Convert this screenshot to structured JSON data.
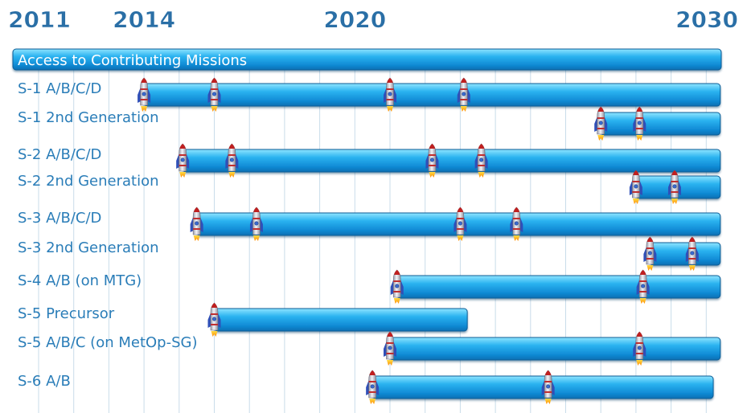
{
  "chart_data": {
    "type": "timeline",
    "x_axis_years": [
      "2011",
      "2014",
      "2020",
      "2030"
    ],
    "xlim": [
      2011,
      2030.5
    ],
    "grid": true,
    "banner": {
      "label": "Access to Contributing Missions",
      "start": 2011,
      "end": 2030.4
    },
    "rows": [
      {
        "label": "S-1 A/B/C/D",
        "start": 2014.0,
        "end": 2030.4,
        "launches": [
          2014.0,
          2016.0,
          2021.0,
          2023.1
        ]
      },
      {
        "label": "S-1 2nd Generation",
        "start": 2027.0,
        "end": 2030.4,
        "launches": [
          2027.0,
          2028.1
        ]
      },
      {
        "label": "S-2 A/B/C/D",
        "start": 2015.1,
        "end": 2030.4,
        "launches": [
          2015.1,
          2016.5,
          2022.2,
          2023.6
        ]
      },
      {
        "label": "S-2 2nd Generation",
        "start": 2028.0,
        "end": 2030.4,
        "launches": [
          2028.0,
          2029.1
        ]
      },
      {
        "label": "S-3 A/B/C/D",
        "start": 2015.5,
        "end": 2030.4,
        "launches": [
          2015.5,
          2017.2,
          2023.0,
          2024.6
        ]
      },
      {
        "label": "S-3 2nd Generation",
        "start": 2028.4,
        "end": 2030.4,
        "launches": [
          2028.4,
          2029.6
        ]
      },
      {
        "label": "S-4 A/B (on MTG)",
        "start": 2021.2,
        "end": 2030.4,
        "launches": [
          2021.2,
          2028.2
        ]
      },
      {
        "label": "S-5 Precursor",
        "start": 2016.0,
        "end": 2023.2,
        "launches": [
          2016.0
        ]
      },
      {
        "label": "S-5 A/B/C (on MetOp-SG)",
        "start": 2021.0,
        "end": 2030.4,
        "launches": [
          2021.0,
          2028.1
        ]
      },
      {
        "label": "S-6 A/B",
        "start": 2020.5,
        "end": 2030.2,
        "launches": [
          2020.5,
          2025.5
        ]
      }
    ],
    "colors": {
      "year_text": "#2a6fa6",
      "row_text": "#2a7db8",
      "grid": "#c9dcea",
      "bar_light": "#5fd0ff",
      "bar_mid": "#1ea3e6",
      "bar_dark": "#0a72b8",
      "bar_edge": "#0a5d97"
    },
    "icon": "rocket-icon"
  }
}
